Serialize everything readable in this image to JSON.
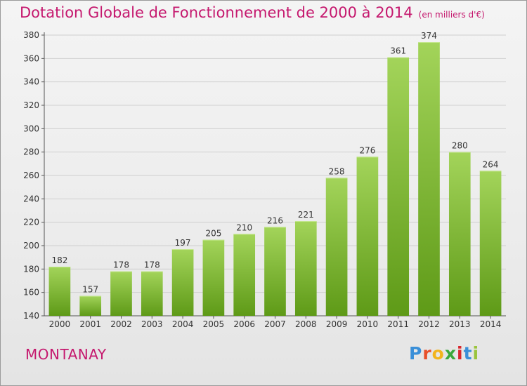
{
  "header": {
    "title": "Dotation Globale de Fonctionnement de 2000 à 2014",
    "unit": "(en milliers d'€)"
  },
  "footer": {
    "commune": "MONTANAY",
    "logo_letters": [
      "P",
      "r",
      "o",
      "x",
      "i",
      "t",
      "i"
    ],
    "logo_colors": [
      "#3a8fd8",
      "#e8502a",
      "#f2b41c",
      "#3aa83a",
      "#d8262d",
      "#3a8fd8",
      "#9ac43c"
    ]
  },
  "colors": {
    "accent": "#c5186e",
    "bar_top": "#a3d45a",
    "bar_bottom": "#5e9a17",
    "grid": "#cfcfcf"
  },
  "chart_data": {
    "type": "bar",
    "categories": [
      "2000",
      "2001",
      "2002",
      "2003",
      "2004",
      "2005",
      "2006",
      "2007",
      "2008",
      "2009",
      "2010",
      "2011",
      "2012",
      "2013",
      "2014"
    ],
    "values": [
      182,
      157,
      178,
      178,
      197,
      205,
      210,
      216,
      221,
      258,
      276,
      361,
      374,
      280,
      264
    ],
    "title": "Dotation Globale de Fonctionnement de 2000 à 2014",
    "xlabel": "",
    "ylabel": "",
    "ylim": [
      140,
      380
    ],
    "yticks": [
      140,
      160,
      180,
      200,
      220,
      240,
      260,
      280,
      300,
      320,
      340,
      360,
      380
    ],
    "grid": true,
    "legend": "none"
  }
}
